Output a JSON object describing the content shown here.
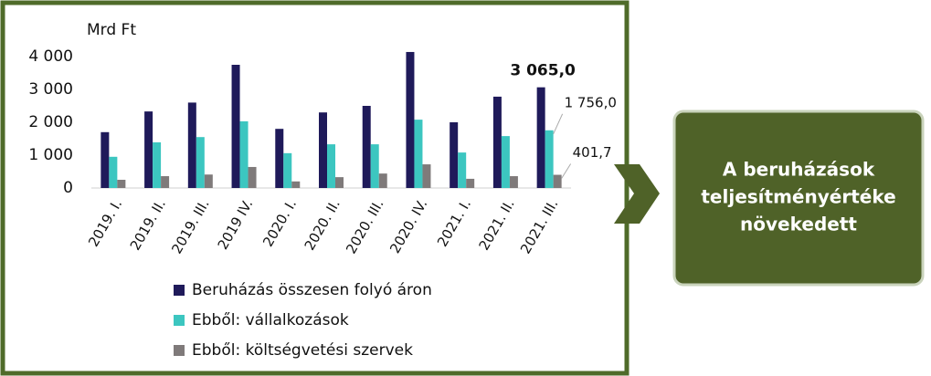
{
  "chart_data": {
    "type": "bar",
    "y_unit_label": "Mrd Ft",
    "categories": [
      "2019. I.",
      "2019. II.",
      "2019. III.",
      "2019 IV.",
      "2020. I.",
      "2020. II.",
      "2020. III.",
      "2020. IV.",
      "2021. I.",
      "2021. II.",
      "2021. III."
    ],
    "series": [
      {
        "name": "Beruházás összesen folyó áron",
        "color": "#1f1a5a",
        "values": [
          1700,
          2330,
          2600,
          3750,
          1800,
          2300,
          2500,
          4140,
          2000,
          2780,
          3065.0
        ],
        "value_labels": [
          null,
          null,
          null,
          null,
          null,
          null,
          null,
          null,
          null,
          null,
          "3 065,0"
        ]
      },
      {
        "name": "Ebből: vállalkozások",
        "color": "#3cc6c0",
        "values": [
          950,
          1390,
          1550,
          2030,
          1060,
          1330,
          1330,
          2080,
          1080,
          1580,
          1756.0
        ],
        "value_labels": [
          null,
          null,
          null,
          null,
          null,
          null,
          null,
          null,
          null,
          null,
          "1 756,0"
        ]
      },
      {
        "name": "Ebből: költségvetési szervek",
        "color": "#7f7a7a",
        "values": [
          250,
          360,
          410,
          640,
          200,
          330,
          440,
          720,
          280,
          360,
          401.7
        ],
        "value_labels": [
          null,
          null,
          null,
          null,
          null,
          null,
          null,
          null,
          null,
          null,
          "401,7"
        ]
      }
    ],
    "ylim": [
      0,
      4000
    ],
    "yticks": [
      0,
      {
        "value": 1000,
        "label": "1 000"
      },
      {
        "value": 2000,
        "label": "2 000"
      },
      {
        "value": 3000,
        "label": "3 000"
      },
      {
        "value": 4000,
        "label": "4 000"
      }
    ],
    "grid": false
  },
  "callout": {
    "lines": [
      "A beruházások",
      "teljesítményértéke",
      "növekedett"
    ]
  }
}
